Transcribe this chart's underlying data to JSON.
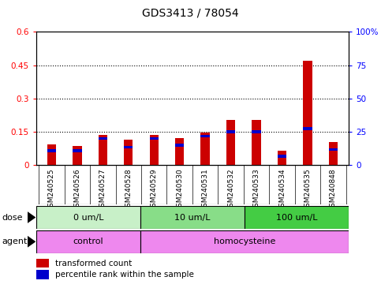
{
  "title": "GDS3413 / 78054",
  "samples": [
    "GSM240525",
    "GSM240526",
    "GSM240527",
    "GSM240528",
    "GSM240529",
    "GSM240530",
    "GSM240531",
    "GSM240532",
    "GSM240533",
    "GSM240534",
    "GSM240535",
    "GSM240848"
  ],
  "transformed_count": [
    0.095,
    0.085,
    0.135,
    0.115,
    0.135,
    0.12,
    0.148,
    0.205,
    0.205,
    0.065,
    0.47,
    0.105
  ],
  "percentile_rank_norm": [
    0.065,
    0.065,
    0.12,
    0.08,
    0.12,
    0.09,
    0.13,
    0.15,
    0.15,
    0.04,
    0.165,
    0.07
  ],
  "dose_groups": [
    {
      "label": "0 um/L",
      "start": 0,
      "end": 4,
      "color": "#c8f0c8"
    },
    {
      "label": "10 um/L",
      "start": 4,
      "end": 8,
      "color": "#88dd88"
    },
    {
      "label": "100 um/L",
      "start": 8,
      "end": 12,
      "color": "#44cc44"
    }
  ],
  "agent_groups": [
    {
      "label": "control",
      "start": 0,
      "end": 4,
      "color": "#ee88ee"
    },
    {
      "label": "homocysteine",
      "start": 4,
      "end": 12,
      "color": "#ee88ee"
    }
  ],
  "ylim_left": [
    0,
    0.6
  ],
  "ylim_right": [
    0,
    100
  ],
  "yticks_left": [
    0,
    0.15,
    0.3,
    0.45,
    0.6
  ],
  "yticks_right": [
    0,
    25,
    50,
    75,
    100
  ],
  "ytick_labels_left": [
    "0",
    "0.15",
    "0.3",
    "0.45",
    "0.6"
  ],
  "ytick_labels_right": [
    "0",
    "25",
    "50",
    "75",
    "100%"
  ],
  "bar_color_red": "#cc0000",
  "bar_color_blue": "#0000cc",
  "legend_items": [
    "transformed count",
    "percentile rank within the sample"
  ],
  "bar_width": 0.35,
  "xticklabel_bg": "#c8c8c8",
  "fig_bg": "#ffffff"
}
